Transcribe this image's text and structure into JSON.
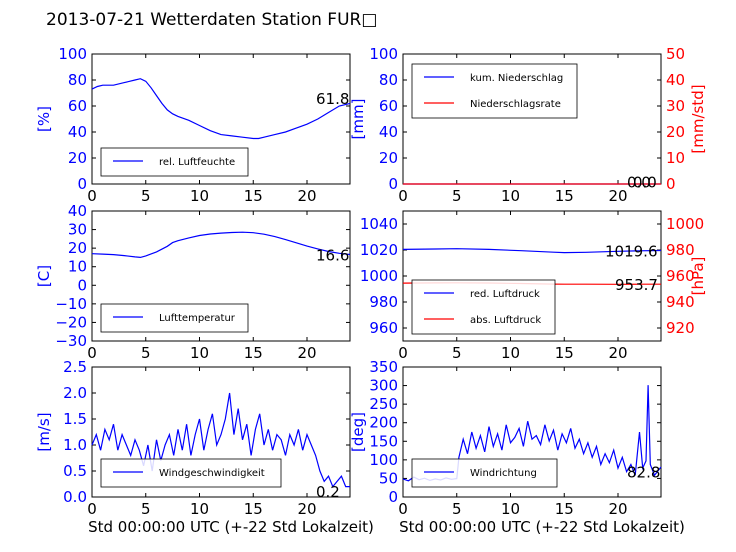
{
  "title": "2013-07-21 Wetterdaten Station FUR□",
  "chart_data": [
    {
      "id": "humidity",
      "type": "line",
      "xlabel": "",
      "ylabel": "[%]",
      "xlim": [
        0,
        24
      ],
      "ylim": [
        0,
        100
      ],
      "xticks": [
        "0",
        "5",
        "10",
        "15",
        "20"
      ],
      "yticks": [
        "0",
        "20",
        "40",
        "60",
        "80",
        "100"
      ],
      "legend": [
        {
          "label": "rel. Luftfeuchte",
          "color": "#0000ff"
        }
      ],
      "legend_position": "lower-left",
      "annotation": "61.8",
      "series": [
        {
          "name": "rel. Luftfeuchte",
          "color": "#0000ff",
          "x": [
            0,
            0.5,
            1,
            2,
            3,
            4,
            4.5,
            5,
            5.5,
            6,
            6.5,
            7,
            7.5,
            8,
            9,
            10,
            11,
            12,
            13,
            14,
            15,
            15.5,
            16,
            17,
            18,
            19,
            20,
            21,
            22,
            23,
            24
          ],
          "y": [
            73,
            75,
            76,
            76,
            78,
            80,
            81,
            79,
            74,
            68,
            62,
            57,
            54,
            52,
            49,
            45,
            41,
            38,
            37,
            36,
            35,
            35,
            36,
            38,
            40,
            43,
            46,
            50,
            55,
            60,
            62
          ]
        }
      ]
    },
    {
      "id": "precip",
      "type": "line",
      "xlabel": "",
      "ylabel": "[mm]",
      "ylabel2": "[mm/std]",
      "xlim": [
        0,
        24
      ],
      "ylim": [
        0,
        100
      ],
      "y2lim": [
        0,
        50
      ],
      "xticks": [
        "0",
        "5",
        "10",
        "15",
        "20"
      ],
      "yticks": [
        "0",
        "20",
        "40",
        "60",
        "80",
        "100"
      ],
      "y2ticks": [
        "0",
        "10",
        "20",
        "30",
        "40",
        "50"
      ],
      "legend": [
        {
          "label": "kum. Niederschlag",
          "color": "#0000ff"
        },
        {
          "label": "Niederschlagsrate",
          "color": "#ff0000"
        }
      ],
      "legend_position": "upper-left",
      "annotation": "0.0",
      "annotation2": "0.0",
      "series": [
        {
          "name": "kum. Niederschlag",
          "color": "#0000ff",
          "x": [
            0,
            24
          ],
          "y": [
            0,
            0
          ]
        },
        {
          "name": "Niederschlagsrate",
          "color": "#ff0000",
          "axis": "right",
          "x": [
            0,
            24
          ],
          "y": [
            0,
            0
          ]
        }
      ]
    },
    {
      "id": "temperature",
      "type": "line",
      "xlabel": "",
      "ylabel": "[C]",
      "xlim": [
        0,
        24
      ],
      "ylim": [
        -30,
        40
      ],
      "xticks": [
        "0",
        "5",
        "10",
        "15",
        "20"
      ],
      "yticks": [
        "−30",
        "−20",
        "−10",
        "0",
        "10",
        "20",
        "30",
        "40"
      ],
      "legend": [
        {
          "label": "Lufttemperatur",
          "color": "#0000ff"
        }
      ],
      "legend_position": "lower-left",
      "annotation": "16.6",
      "series": [
        {
          "name": "Lufttemperatur",
          "color": "#0000ff",
          "x": [
            0,
            1,
            2,
            3,
            4,
            4.5,
            5,
            6,
            7,
            7.5,
            8,
            9,
            10,
            11,
            12,
            13,
            14,
            15,
            16,
            17,
            18,
            19,
            20,
            21,
            22,
            23,
            24
          ],
          "y": [
            17,
            16.8,
            16.5,
            16,
            15.3,
            15,
            15.8,
            18,
            21,
            23,
            24,
            25.5,
            26.8,
            27.6,
            28.1,
            28.4,
            28.6,
            28.3,
            27.5,
            26.2,
            24.6,
            22.9,
            21.1,
            19.6,
            18.2,
            17.2,
            16.6
          ]
        }
      ]
    },
    {
      "id": "pressure",
      "type": "line",
      "xlabel": "",
      "ylabel": "",
      "ylabel2": "[hPa]",
      "xlim": [
        0,
        24
      ],
      "ylim": [
        950,
        1050
      ],
      "y2lim": [
        910,
        1010
      ],
      "xticks": [
        "0",
        "5",
        "10",
        "15",
        "20"
      ],
      "yticks": [
        "960",
        "980",
        "1000",
        "1020",
        "1040"
      ],
      "y2ticks": [
        "920",
        "940",
        "960",
        "980",
        "1000"
      ],
      "legend": [
        {
          "label": "red. Luftdruck",
          "color": "#0000ff"
        },
        {
          "label": "abs. Luftdruck",
          "color": "#ff0000"
        }
      ],
      "legend_position": "lower-left",
      "annotation": "1019.6",
      "annotation2": "953.7",
      "series": [
        {
          "name": "red. Luftdruck",
          "color": "#0000ff",
          "x": [
            0,
            3,
            5,
            8,
            11,
            14,
            15,
            17,
            20,
            22,
            24
          ],
          "y": [
            1020.5,
            1020.8,
            1021,
            1020.5,
            1019.5,
            1018.3,
            1018,
            1018.2,
            1019,
            1019.4,
            1019.6
          ]
        },
        {
          "name": "abs. Luftdruck",
          "color": "#ff0000",
          "axis": "right",
          "x": [
            0,
            3,
            5,
            8,
            11,
            14,
            15,
            17,
            20,
            22,
            24
          ],
          "y": [
            954.5,
            954.7,
            954.8,
            954.6,
            954.2,
            953.8,
            953.7,
            953.7,
            953.6,
            953.7,
            953.7
          ]
        }
      ]
    },
    {
      "id": "wind-speed",
      "type": "line",
      "xlabel": "Std 00:00:00 UTC (+-22 Std Lokalzeit)",
      "ylabel": "[m/s]",
      "xlim": [
        0,
        24
      ],
      "ylim": [
        0,
        2.5
      ],
      "xticks": [
        "0",
        "5",
        "10",
        "15",
        "20"
      ],
      "yticks": [
        "0.0",
        "0.5",
        "1.0",
        "1.5",
        "2.0",
        "2.5"
      ],
      "legend": [
        {
          "label": "Windgeschwindigkeit",
          "color": "#0000ff"
        }
      ],
      "legend_position": "lower-left",
      "annotation": "0.2",
      "series": [
        {
          "name": "Windgeschwindigkeit",
          "color": "#0000ff",
          "x": [
            0,
            0.4,
            0.8,
            1.2,
            1.6,
            2,
            2.4,
            2.8,
            3.2,
            3.6,
            4,
            4.4,
            4.8,
            5.2,
            5.6,
            6,
            6.4,
            6.8,
            7.2,
            7.6,
            8,
            8.4,
            8.8,
            9.2,
            9.6,
            10,
            10.4,
            10.8,
            11.2,
            11.6,
            12,
            12.4,
            12.8,
            13.2,
            13.6,
            14,
            14.4,
            14.8,
            15.2,
            15.6,
            16,
            16.4,
            16.8,
            17.2,
            17.6,
            18,
            18.4,
            18.8,
            19.2,
            19.6,
            20,
            20.4,
            20.8,
            21.2,
            21.6,
            22,
            22.4,
            22.8,
            23.2,
            23.6,
            24
          ],
          "y": [
            1.0,
            1.2,
            0.9,
            1.3,
            1.1,
            1.4,
            0.9,
            1.2,
            1.0,
            0.8,
            1.1,
            0.9,
            0.6,
            1.0,
            0.5,
            1.1,
            0.7,
            1.0,
            1.2,
            0.8,
            1.3,
            0.9,
            1.4,
            0.8,
            1.2,
            1.5,
            0.9,
            1.3,
            1.6,
            1.0,
            1.2,
            1.5,
            2.0,
            1.2,
            1.7,
            1.1,
            1.4,
            0.8,
            1.3,
            1.6,
            1.0,
            1.3,
            0.9,
            1.2,
            1.1,
            0.8,
            1.2,
            1.0,
            1.3,
            0.9,
            1.2,
            1.0,
            0.8,
            0.5,
            0.3,
            0.4,
            0.2,
            0.3,
            0.4,
            0.2,
            0.2
          ]
        }
      ]
    },
    {
      "id": "wind-direction",
      "type": "line",
      "xlabel": "Std 00:00:00 UTC (+-22 Std Lokalzeit)",
      "ylabel": "[deg]",
      "xlim": [
        0,
        24
      ],
      "ylim": [
        0,
        360
      ],
      "xticks": [
        "0",
        "5",
        "10",
        "15",
        "20"
      ],
      "yticks": [
        "0",
        "50",
        "100",
        "150",
        "200",
        "250",
        "300",
        "350"
      ],
      "legend": [
        {
          "label": "Windrichtung",
          "color": "#0000ff"
        }
      ],
      "legend_position": "lower-left",
      "annotation": "82.8",
      "series": [
        {
          "name": "Windrichtung",
          "color": "#0000ff",
          "x": [
            0,
            0.5,
            1,
            1.5,
            2,
            2.5,
            3,
            3.5,
            4,
            4.5,
            5,
            5.2,
            5.6,
            6,
            6.4,
            6.8,
            7.2,
            7.6,
            8,
            8.4,
            8.8,
            9.2,
            9.6,
            10,
            10.4,
            10.8,
            11.2,
            11.6,
            12,
            12.4,
            12.8,
            13.2,
            13.6,
            14,
            14.4,
            14.8,
            15.2,
            15.6,
            16,
            16.4,
            16.8,
            17.2,
            17.6,
            18,
            18.4,
            18.8,
            19.2,
            19.6,
            20,
            20.4,
            20.8,
            21.2,
            21.6,
            22,
            22.3,
            22.6,
            22.8,
            23,
            23.4,
            24
          ],
          "y": [
            50,
            45,
            55,
            48,
            52,
            46,
            50,
            47,
            53,
            49,
            51,
            110,
            160,
            120,
            180,
            135,
            170,
            125,
            195,
            140,
            175,
            130,
            200,
            150,
            165,
            190,
            140,
            210,
            160,
            170,
            145,
            200,
            155,
            185,
            130,
            175,
            150,
            190,
            135,
            160,
            120,
            150,
            110,
            140,
            90,
            120,
            95,
            130,
            80,
            110,
            70,
            90,
            60,
            180,
            80,
            100,
            310,
            90,
            60,
            83
          ]
        }
      ]
    }
  ]
}
